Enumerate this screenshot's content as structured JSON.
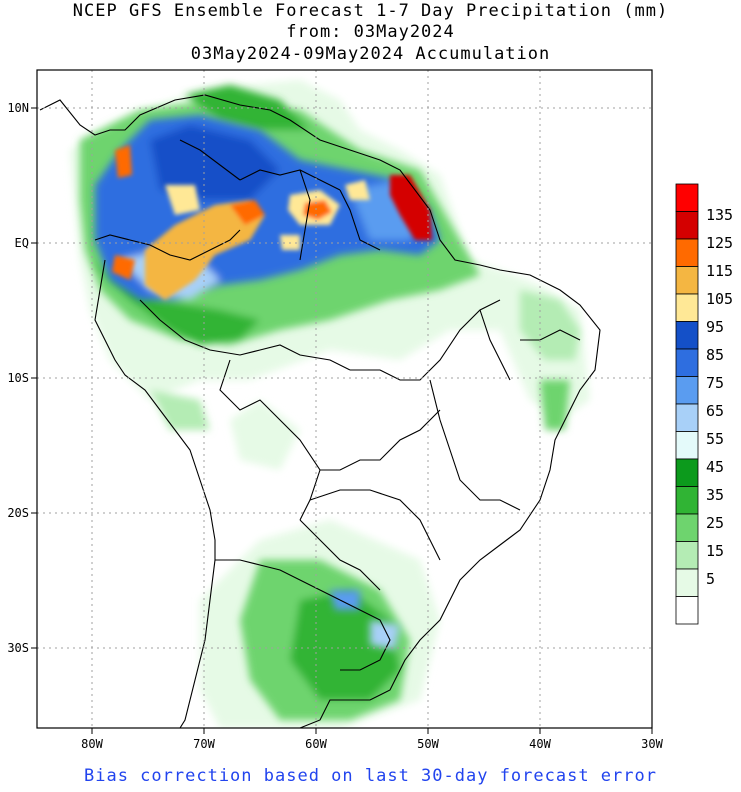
{
  "title": {
    "line1": "NCEP GFS Ensemble Forecast 1-7 Day Precipitation (mm)",
    "line2": "from: 03May2024",
    "line3": "03May2024-09May2024 Accumulation"
  },
  "axes": {
    "x_ticks": [
      "80W",
      "70W",
      "60W",
      "50W",
      "40W",
      "30W"
    ],
    "y_ticks": [
      "10N",
      "EQ",
      "10S",
      "20S",
      "30S"
    ]
  },
  "legend": {
    "labels": [
      "135",
      "125",
      "115",
      "105",
      "95",
      "85",
      "75",
      "65",
      "55",
      "45",
      "35",
      "25",
      "15",
      "5"
    ],
    "colors": [
      "#ff0000",
      "#d40000",
      "#ff6a00",
      "#f4b642",
      "#ffe896",
      "#1450c8",
      "#2e6ee0",
      "#5a9cf0",
      "#a8d0f8",
      "#e4fafa",
      "#0c9a1c",
      "#30b434",
      "#6ed46e",
      "#b4ecb4",
      "#e6fae6",
      "#ffffff"
    ]
  },
  "footer": "Bias correction based on last 30-day forecast error"
}
